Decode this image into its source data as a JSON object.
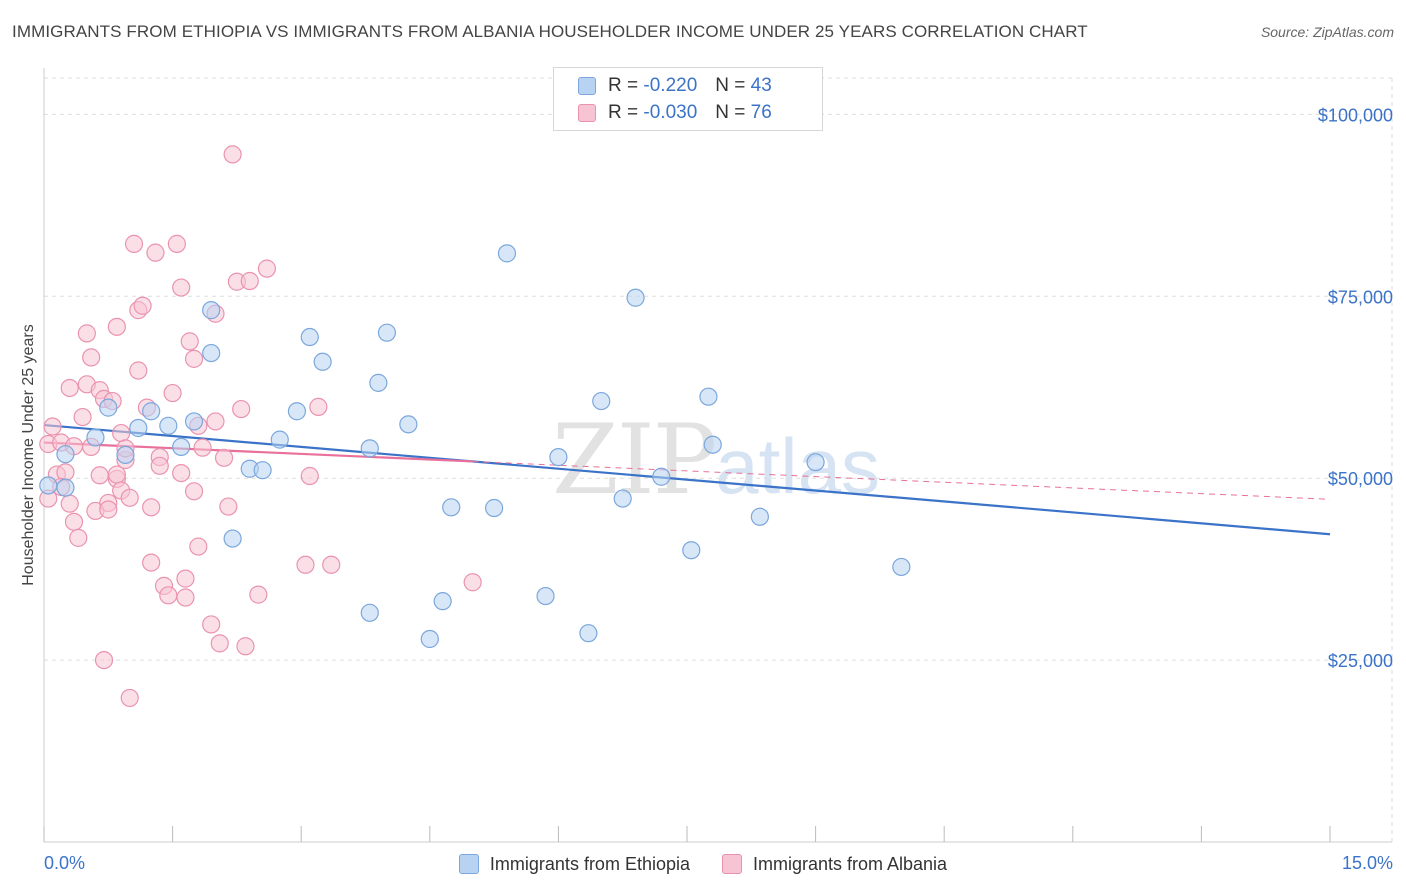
{
  "title": "IMMIGRANTS FROM ETHIOPIA VS IMMIGRANTS FROM ALBANIA HOUSEHOLDER INCOME UNDER 25 YEARS CORRELATION CHART",
  "source": "Source: ZipAtlas.com",
  "watermark": {
    "zip": "ZIP",
    "atlas": "atlas"
  },
  "legend_top": [
    {
      "r_label": "R = ",
      "r_value": "-0.220",
      "n_label": "N = ",
      "n_value": "43"
    },
    {
      "r_label": "R = ",
      "r_value": "-0.030",
      "n_label": "N = ",
      "n_value": "76"
    }
  ],
  "colors": {
    "blue_fill": "#b8d3f2",
    "blue_stroke": "#7ba7dc",
    "blue_line": "#3b73c8",
    "pink_fill": "#f7c4d4",
    "pink_stroke": "#ea93b1",
    "pink_line": "#e8709a",
    "axis_text": "#3b73c8",
    "grid": "#dddddd"
  },
  "chart_data": {
    "type": "scatter",
    "title": "IMMIGRANTS FROM ETHIOPIA VS IMMIGRANTS FROM ALBANIA HOUSEHOLDER INCOME UNDER 25 YEARS CORRELATION CHART",
    "xlabel": "",
    "ylabel": "Householder Income Under 25 years",
    "xlim": [
      0,
      15
    ],
    "ylim": [
      0,
      105000
    ],
    "x_tick_labels": [
      "0.0%",
      "15.0%"
    ],
    "y_ticks": [
      25000,
      50000,
      75000,
      100000
    ],
    "y_tick_labels": [
      "$25,000",
      "$50,000",
      "$75,000",
      "$100,000"
    ],
    "grid": true,
    "legend_position": "bottom",
    "series": [
      {
        "name": "Immigrants from Ethiopia",
        "color": "#b8d3f2",
        "r": -0.22,
        "n": 43,
        "trend": {
          "x": [
            0,
            15
          ],
          "y": [
            57300,
            42300
          ]
        },
        "points": [
          [
            0.05,
            49000
          ],
          [
            0.25,
            53300
          ],
          [
            0.25,
            48700
          ],
          [
            0.6,
            55600
          ],
          [
            0.75,
            59700
          ],
          [
            0.95,
            53200
          ],
          [
            1.1,
            56900
          ],
          [
            1.25,
            59200
          ],
          [
            1.45,
            57200
          ],
          [
            1.6,
            54300
          ],
          [
            1.75,
            57800
          ],
          [
            1.95,
            67200
          ],
          [
            1.95,
            73100
          ],
          [
            2.2,
            41700
          ],
          [
            2.4,
            51300
          ],
          [
            2.55,
            51100
          ],
          [
            2.75,
            55300
          ],
          [
            2.95,
            59200
          ],
          [
            3.1,
            69400
          ],
          [
            3.25,
            66000
          ],
          [
            3.8,
            54100
          ],
          [
            3.8,
            31500
          ],
          [
            3.9,
            63100
          ],
          [
            4.0,
            70000
          ],
          [
            4.25,
            57400
          ],
          [
            4.5,
            27900
          ],
          [
            4.65,
            33100
          ],
          [
            4.75,
            46000
          ],
          [
            5.25,
            45900
          ],
          [
            5.4,
            80900
          ],
          [
            5.85,
            33800
          ],
          [
            6.0,
            52900
          ],
          [
            6.35,
            28700
          ],
          [
            6.5,
            60600
          ],
          [
            6.75,
            47200
          ],
          [
            6.9,
            74800
          ],
          [
            7.2,
            50200
          ],
          [
            7.55,
            40100
          ],
          [
            7.75,
            61200
          ],
          [
            7.8,
            54600
          ],
          [
            8.35,
            44700
          ],
          [
            9.0,
            52200
          ],
          [
            10.0,
            37800
          ]
        ]
      },
      {
        "name": "Immigrants from Albania",
        "color": "#f7c4d4",
        "r": -0.03,
        "n": 76,
        "trend": {
          "x": [
            0,
            15
          ],
          "y": [
            54900,
            47100
          ]
        },
        "trend_solid_to_x": 5.0,
        "points": [
          [
            0.05,
            47200
          ],
          [
            0.05,
            54700
          ],
          [
            0.1,
            57100
          ],
          [
            0.15,
            50500
          ],
          [
            0.2,
            54900
          ],
          [
            0.25,
            50800
          ],
          [
            0.3,
            46500
          ],
          [
            0.3,
            62400
          ],
          [
            0.35,
            54400
          ],
          [
            0.35,
            44000
          ],
          [
            0.4,
            41800
          ],
          [
            0.45,
            58400
          ],
          [
            0.5,
            62900
          ],
          [
            0.5,
            69900
          ],
          [
            0.55,
            54300
          ],
          [
            0.55,
            66600
          ],
          [
            0.6,
            45500
          ],
          [
            0.65,
            50400
          ],
          [
            0.65,
            62100
          ],
          [
            0.7,
            60900
          ],
          [
            0.7,
            25000
          ],
          [
            0.75,
            46600
          ],
          [
            0.75,
            45700
          ],
          [
            0.8,
            60600
          ],
          [
            0.85,
            49900
          ],
          [
            0.85,
            50500
          ],
          [
            0.85,
            70800
          ],
          [
            0.9,
            56200
          ],
          [
            0.9,
            48300
          ],
          [
            0.95,
            52500
          ],
          [
            0.95,
            54100
          ],
          [
            1.0,
            47300
          ],
          [
            1.0,
            19800
          ],
          [
            1.05,
            82200
          ],
          [
            1.1,
            73100
          ],
          [
            1.1,
            64800
          ],
          [
            1.15,
            73700
          ],
          [
            1.2,
            59700
          ],
          [
            1.25,
            38400
          ],
          [
            1.25,
            46000
          ],
          [
            1.3,
            81000
          ],
          [
            1.35,
            52900
          ],
          [
            1.35,
            51700
          ],
          [
            1.4,
            35200
          ],
          [
            1.45,
            33900
          ],
          [
            1.5,
            61700
          ],
          [
            1.55,
            82200
          ],
          [
            1.6,
            50700
          ],
          [
            1.6,
            76200
          ],
          [
            1.65,
            33600
          ],
          [
            1.65,
            36200
          ],
          [
            1.7,
            68800
          ],
          [
            1.75,
            66400
          ],
          [
            1.75,
            48200
          ],
          [
            1.8,
            57200
          ],
          [
            1.8,
            40600
          ],
          [
            1.85,
            54200
          ],
          [
            1.95,
            29900
          ],
          [
            2.0,
            57800
          ],
          [
            2.0,
            72600
          ],
          [
            2.05,
            27300
          ],
          [
            2.1,
            52800
          ],
          [
            2.15,
            46100
          ],
          [
            2.2,
            94500
          ],
          [
            2.25,
            77000
          ],
          [
            2.3,
            59500
          ],
          [
            2.35,
            26900
          ],
          [
            2.4,
            77100
          ],
          [
            2.5,
            34000
          ],
          [
            2.6,
            78800
          ],
          [
            3.05,
            38100
          ],
          [
            3.1,
            50300
          ],
          [
            3.2,
            59800
          ],
          [
            3.35,
            38100
          ],
          [
            5.0,
            35700
          ],
          [
            0.2,
            48800
          ]
        ]
      }
    ]
  }
}
